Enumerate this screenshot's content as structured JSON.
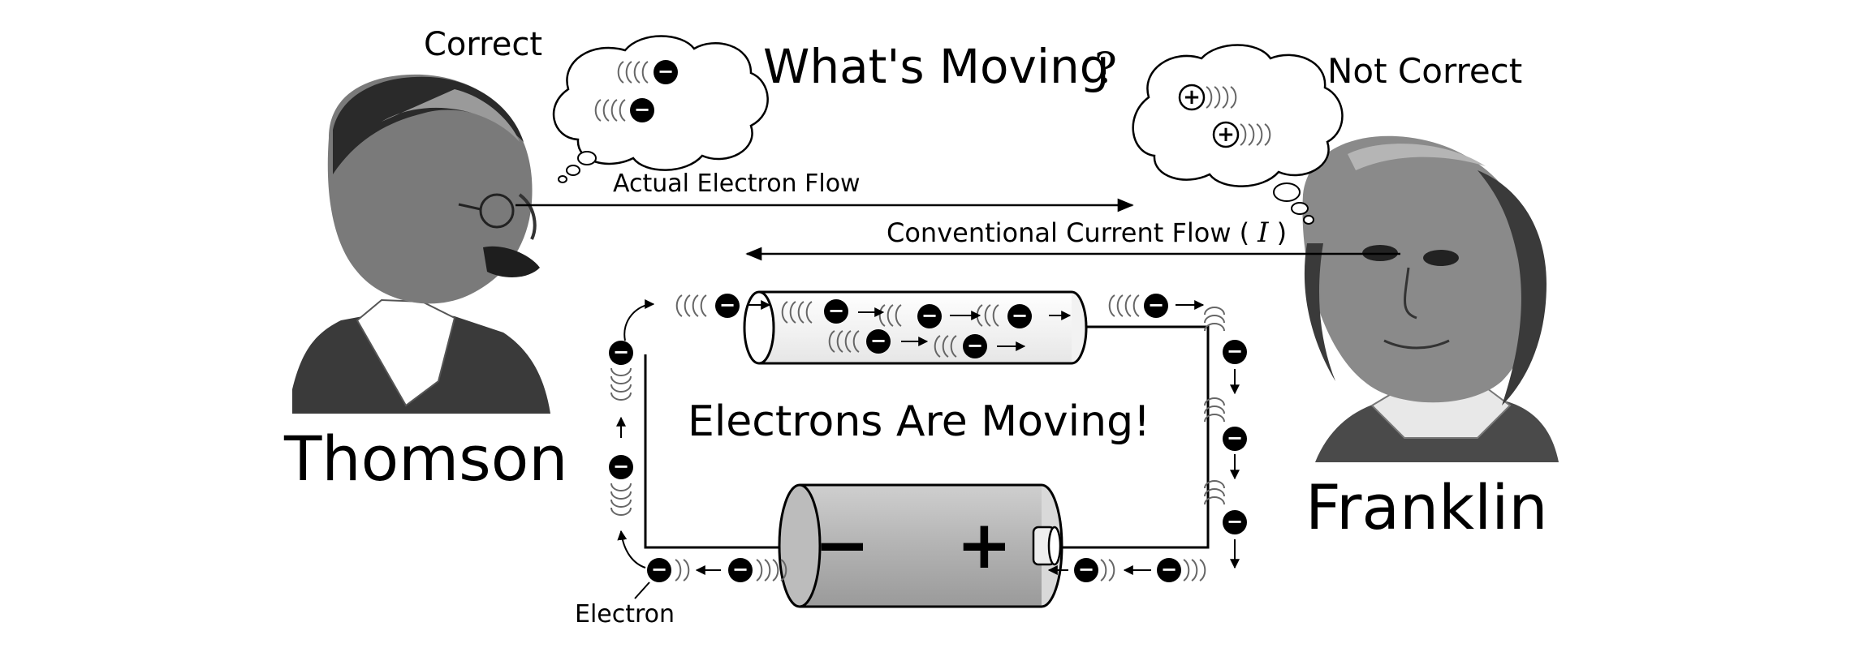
{
  "labels": {
    "correct": "Correct",
    "not_correct": "Not Correct",
    "question_main": "What's Moving",
    "question_mark": "?",
    "actual_flow": "Actual Electron Flow",
    "conventional_flow": "Conventional Current Flow (",
    "current_symbol": "I",
    "conventional_close": ")",
    "electrons_moving": "Electrons Are Moving!",
    "thomson": "Thomson",
    "franklin": "Franklin",
    "electron": "Electron",
    "battery_minus": "−",
    "battery_plus": "+"
  },
  "particles": {
    "electron_sign": "−",
    "proton_sign": "+"
  },
  "colors": {
    "ink": "#000000",
    "battery_body": "#b3b3b3",
    "portrait_tone": "#6e6e6e"
  },
  "icons": {
    "thomson": "thomson-portrait-icon",
    "franklin": "franklin-portrait-icon",
    "battery": "battery-icon",
    "wire": "wire-cylinder-icon"
  }
}
